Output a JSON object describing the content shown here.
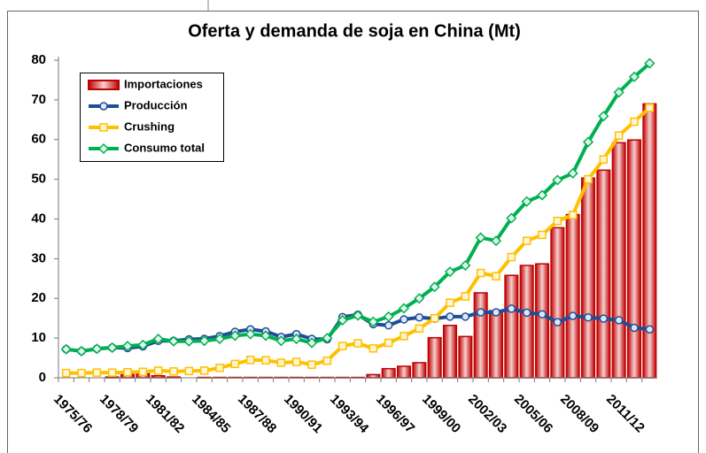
{
  "chart_data": {
    "type": "bar",
    "title": "Oferta y demanda de soja en China (Mt)",
    "categories": [
      "1975/76",
      null,
      null,
      "1978/79",
      null,
      null,
      "1981/82",
      null,
      null,
      "1984/85",
      null,
      null,
      "1987/88",
      null,
      null,
      "1990/91",
      null,
      null,
      "1993/94",
      null,
      null,
      "1996/97",
      null,
      null,
      "1999/00",
      null,
      null,
      "2002/03",
      null,
      null,
      "2005/06",
      null,
      null,
      "2008/09",
      null,
      null,
      "2011/12",
      null,
      null
    ],
    "series": [
      {
        "name": "Importaciones",
        "type": "bar",
        "color": "#c00000",
        "values": [
          0,
          0,
          0,
          0.2,
          0.8,
          1.0,
          0.5,
          0.2,
          0,
          0.1,
          0.1,
          0.1,
          0.1,
          0.1,
          0.1,
          0.1,
          0.1,
          0.1,
          0.1,
          0.1,
          0.8,
          2.3,
          2.9,
          3.8,
          10.1,
          13.2,
          10.4,
          21.4,
          16.9,
          25.8,
          28.3,
          28.7,
          37.8,
          41.1,
          50.3,
          52.3,
          59.2,
          59.9,
          69
        ]
      },
      {
        "name": "Producción",
        "type": "line",
        "marker": "circle",
        "color": "#1f4e96",
        "values": [
          7.2,
          6.7,
          7.3,
          7.6,
          7.5,
          7.9,
          9.3,
          9.3,
          9.7,
          9.8,
          10.5,
          11.6,
          12.2,
          11.7,
          10.3,
          11,
          9.8,
          9.7,
          15.3,
          15.9,
          13.5,
          13.2,
          14.7,
          15.2,
          14.9,
          15.4,
          15.4,
          16.5,
          16.5,
          17.4,
          16.4,
          16,
          14,
          15.6,
          15.2,
          14.9,
          14.5,
          12.6,
          12.2
        ]
      },
      {
        "name": "Crushing",
        "type": "line",
        "marker": "square",
        "color": "#ffc000",
        "values": [
          1.2,
          1.2,
          1.3,
          1.3,
          1.4,
          1.5,
          1.8,
          1.6,
          1.7,
          1.8,
          2.5,
          3.5,
          4.5,
          4.4,
          3.8,
          4,
          3.3,
          4.3,
          8,
          8.7,
          7.4,
          8.8,
          10.5,
          12.4,
          15,
          18.9,
          20.5,
          26.4,
          25.6,
          30.4,
          34.5,
          36,
          39.5,
          41,
          50,
          55,
          61,
          64.5,
          68
        ]
      },
      {
        "name": "Consumo total",
        "type": "line",
        "marker": "diamond",
        "color": "#00b050",
        "values": [
          7.2,
          6.7,
          7.3,
          7.6,
          8,
          8.3,
          9.8,
          9.2,
          9.2,
          9.3,
          9.8,
          10.6,
          11,
          10.6,
          9.3,
          9.8,
          8.8,
          10,
          14.5,
          15.7,
          14.1,
          15.4,
          17.5,
          20,
          22.9,
          26.7,
          28.3,
          35.3,
          34.5,
          40.2,
          44.4,
          46,
          49.8,
          51.5,
          59.4,
          65.9,
          71.9,
          75.8,
          79.2
        ]
      }
    ],
    "ylim": [
      0,
      80
    ],
    "yticks": [
      0,
      10,
      20,
      30,
      40,
      50,
      60,
      70,
      80
    ],
    "legend": "upper left"
  }
}
